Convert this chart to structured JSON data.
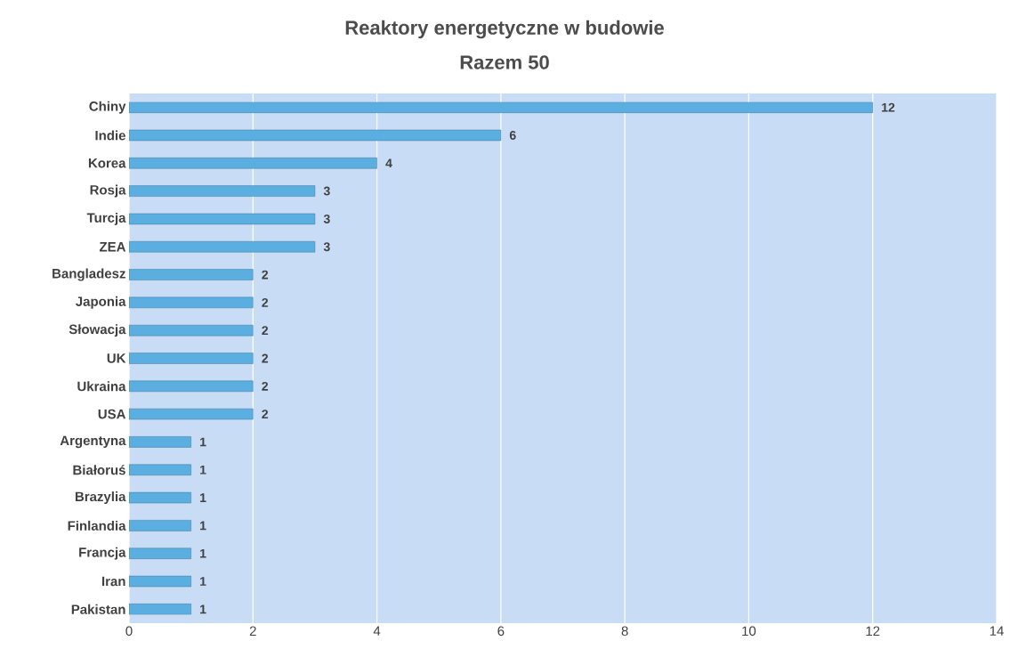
{
  "chart_data": {
    "type": "bar",
    "orientation": "horizontal",
    "title": "Reaktory energetyczne w budowie",
    "subtitle": "Razem 50",
    "categories": [
      "Chiny",
      "Indie",
      "Korea",
      "Rosja",
      "Turcja",
      "ZEA",
      "Bangladesz",
      "Japonia",
      "Słowacja",
      "UK",
      "Ukraina",
      "USA",
      "Argentyna",
      "Białoruś",
      "Brazylia",
      "Finlandia",
      "Francja",
      "Iran",
      "Pakistan"
    ],
    "values": [
      12,
      6,
      4,
      3,
      3,
      3,
      2,
      2,
      2,
      2,
      2,
      2,
      1,
      1,
      1,
      1,
      1,
      1,
      1
    ],
    "color": "#5aaee0",
    "xlim": [
      0,
      14
    ],
    "xticks": [
      0,
      2,
      4,
      6,
      8,
      10,
      12,
      14
    ],
    "grid": "x",
    "data_labels": true
  }
}
